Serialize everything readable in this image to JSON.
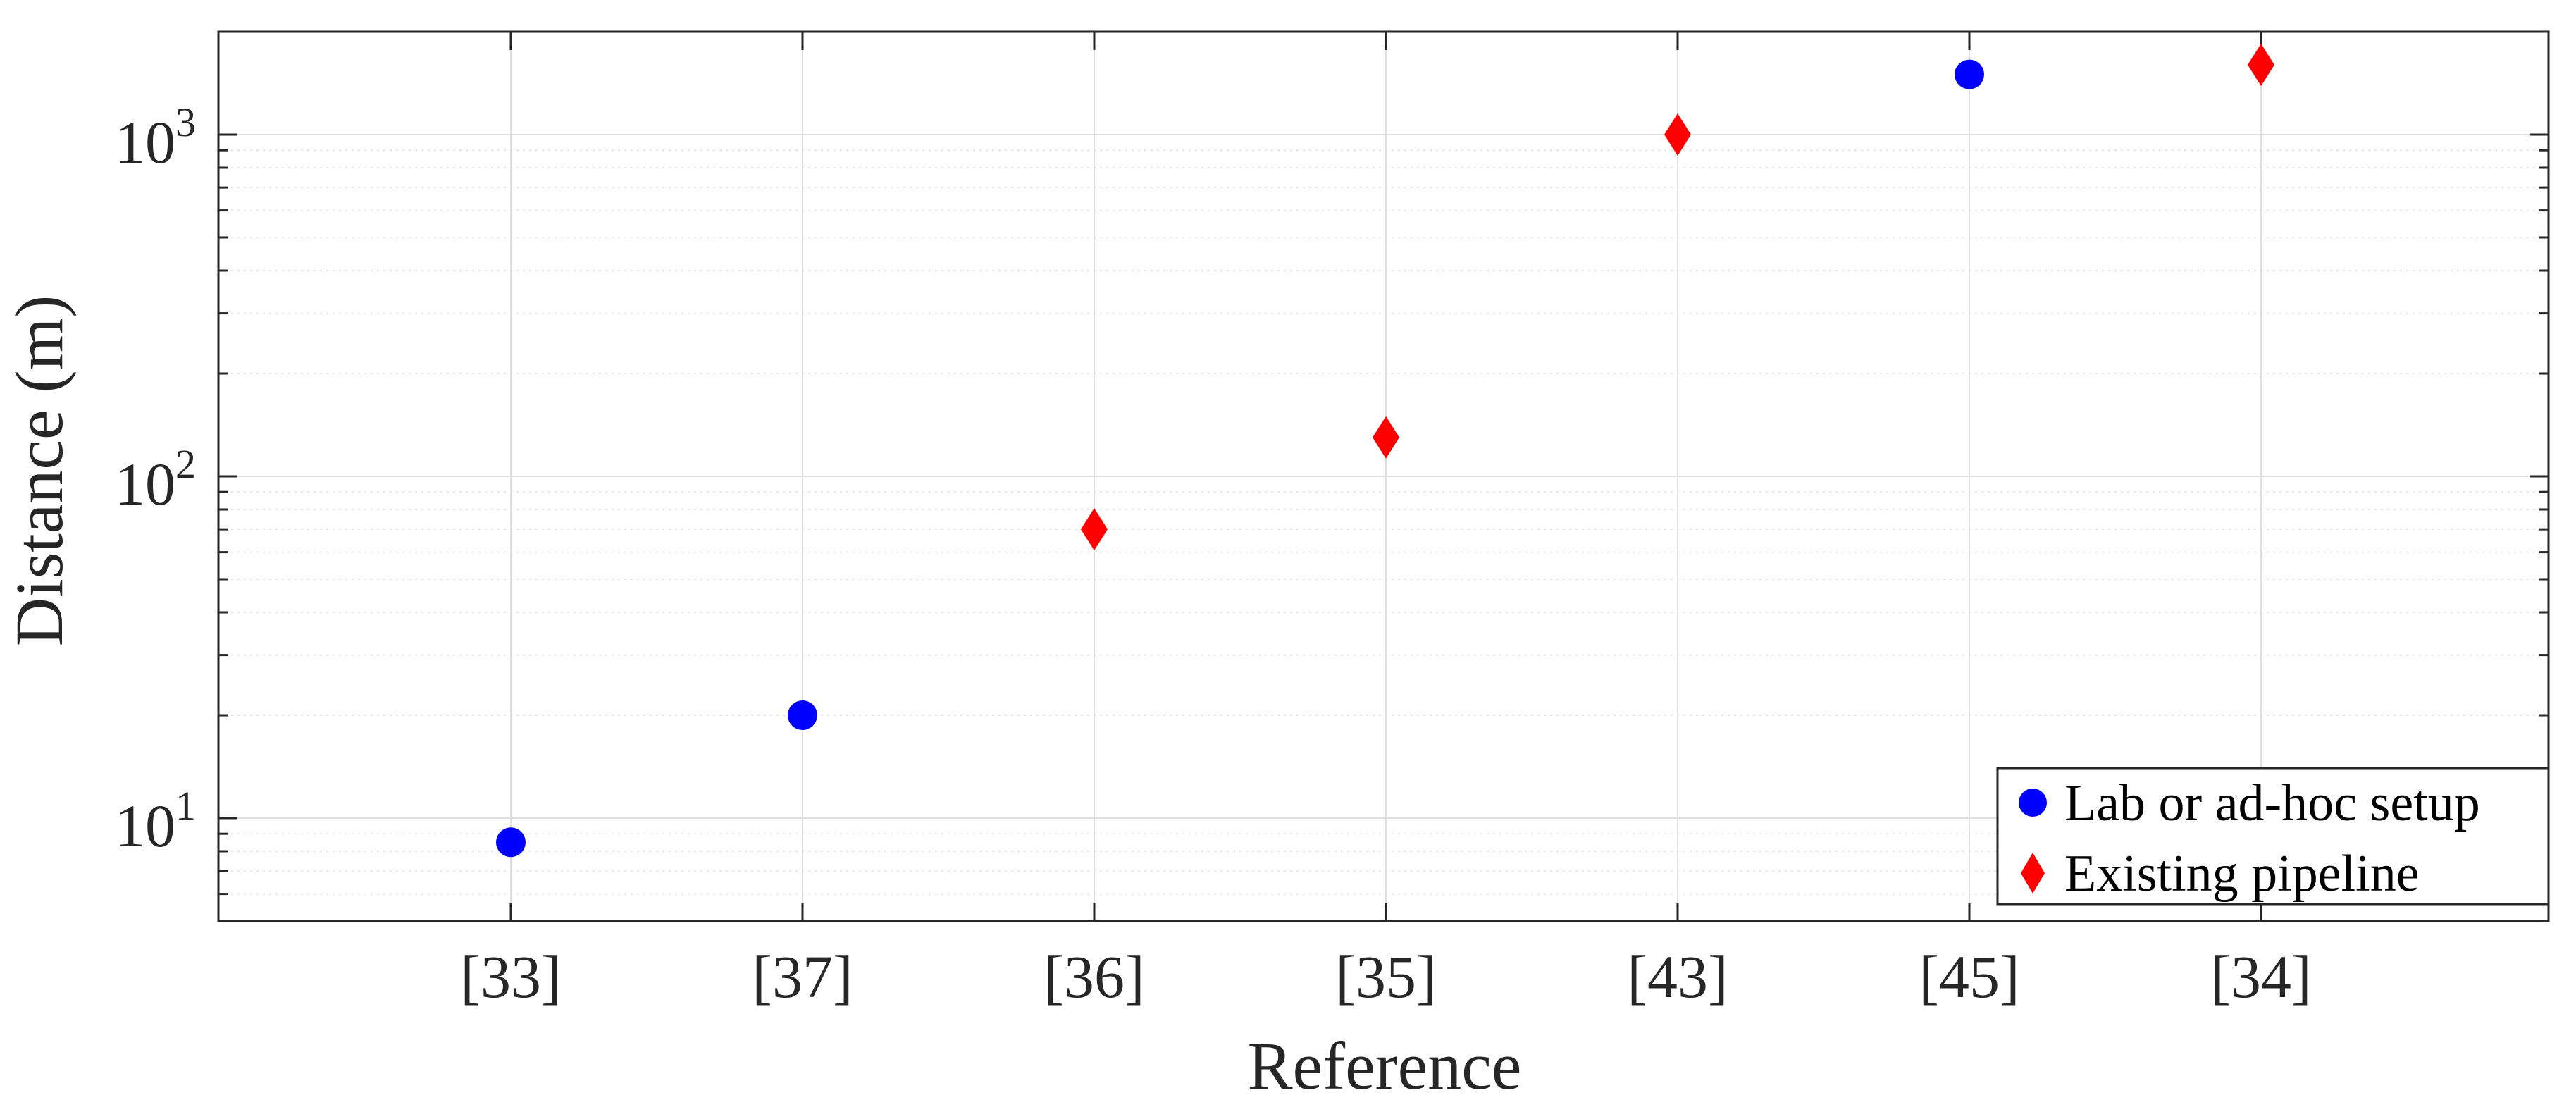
{
  "chart_data": {
    "type": "scatter",
    "title": "",
    "xlabel": "Reference",
    "ylabel": "Distance (m)",
    "y_scale": "log",
    "ylim": [
      5,
      2000
    ],
    "categories": [
      "[33]",
      "[37]",
      "[36]",
      "[35]",
      "[43]",
      "[45]",
      "[34]"
    ],
    "y_ticks": [
      {
        "base": "10",
        "exp": "1",
        "value": 10
      },
      {
        "base": "10",
        "exp": "2",
        "value": 100
      },
      {
        "base": "10",
        "exp": "3",
        "value": 1000
      }
    ],
    "grid": true,
    "legend_position": "bottom-right",
    "series": [
      {
        "name": "Lab or ad-hoc setup",
        "marker": "circle",
        "color": "#0000ff",
        "points": [
          {
            "x": "[33]",
            "y": 8.5
          },
          {
            "x": "[37]",
            "y": 20
          },
          {
            "x": "[45]",
            "y": 1500
          }
        ]
      },
      {
        "name": "Existing pipeline",
        "marker": "diamond",
        "color": "#ff0000",
        "points": [
          {
            "x": "[36]",
            "y": 70
          },
          {
            "x": "[35]",
            "y": 130
          },
          {
            "x": "[43]",
            "y": 1000
          },
          {
            "x": "[34]",
            "y": 1600
          }
        ]
      }
    ]
  }
}
